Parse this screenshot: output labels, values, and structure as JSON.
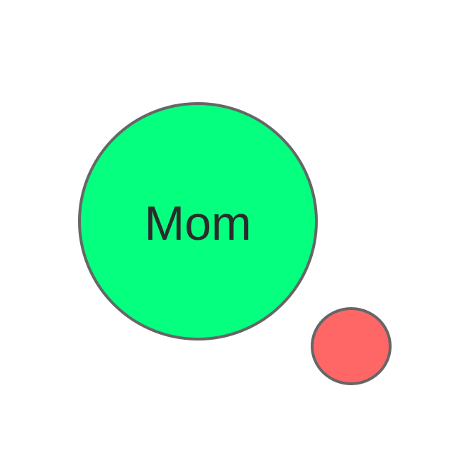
{
  "diagram": {
    "main_node": {
      "label": "Mom",
      "fill": "#05FF7F",
      "stroke": "#666666"
    },
    "secondary_node": {
      "label": "",
      "fill": "#FF6666",
      "stroke": "#666666"
    }
  }
}
